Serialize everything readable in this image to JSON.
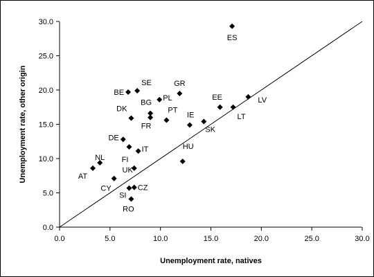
{
  "chart_data": {
    "type": "scatter",
    "title": "",
    "xlabel": "Unemployment rate, natives",
    "ylabel": "Unemployment rate, other origin",
    "xlim": [
      0,
      30
    ],
    "ylim": [
      0,
      30
    ],
    "x_ticks": [
      "0.0",
      "5.0",
      "10.0",
      "15.0",
      "20.0",
      "25.0",
      "30.0"
    ],
    "y_ticks": [
      "0.0",
      "5.0",
      "10.0",
      "15.0",
      "20.0",
      "25.0",
      "30.0"
    ],
    "grid": false,
    "legend": "none",
    "reference_line": {
      "from": [
        0,
        0
      ],
      "to": [
        30,
        30
      ]
    },
    "marker_color": "#000000",
    "marker": "diamond",
    "points": [
      {
        "label": "ES",
        "x": 17.1,
        "y": 29.3
      },
      {
        "label": "SE",
        "x": 7.7,
        "y": 19.9
      },
      {
        "label": "BE",
        "x": 6.8,
        "y": 19.7
      },
      {
        "label": "GR",
        "x": 11.9,
        "y": 19.5
      },
      {
        "label": "PL",
        "x": 9.9,
        "y": 18.6
      },
      {
        "label": "BG",
        "x": 9.0,
        "y": 16.6
      },
      {
        "label": "DK",
        "x": 7.1,
        "y": 15.9
      },
      {
        "label": "FR",
        "x": 9.0,
        "y": 16.0
      },
      {
        "label": "PT",
        "x": 10.6,
        "y": 15.6
      },
      {
        "label": "IE",
        "x": 12.9,
        "y": 14.9
      },
      {
        "label": "SK",
        "x": 14.3,
        "y": 15.4
      },
      {
        "label": "EE",
        "x": 15.9,
        "y": 17.5
      },
      {
        "label": "LT",
        "x": 17.2,
        "y": 17.5
      },
      {
        "label": "LV",
        "x": 18.7,
        "y": 19.0
      },
      {
        "label": "DE",
        "x": 6.3,
        "y": 12.8
      },
      {
        "label": "FI",
        "x": 6.9,
        "y": 11.7
      },
      {
        "label": "IT",
        "x": 7.8,
        "y": 11.1
      },
      {
        "label": "NL",
        "x": 4.0,
        "y": 9.4
      },
      {
        "label": "AT",
        "x": 3.3,
        "y": 8.6
      },
      {
        "label": "UK",
        "x": 7.4,
        "y": 8.6
      },
      {
        "label": "HU",
        "x": 12.2,
        "y": 9.6
      },
      {
        "label": "CY",
        "x": 5.4,
        "y": 7.1
      },
      {
        "label": "SI",
        "x": 6.9,
        "y": 5.7
      },
      {
        "label": "CZ",
        "x": 7.4,
        "y": 5.8
      },
      {
        "label": "RO",
        "x": 7.1,
        "y": 4.1
      }
    ]
  }
}
